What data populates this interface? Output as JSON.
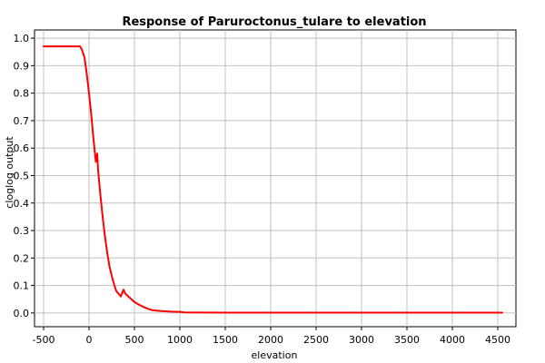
{
  "chart_data": {
    "type": "line",
    "title": "Response of Paruroctonus_tulare to elevation",
    "xlabel": "elevation",
    "ylabel": "cloglog output",
    "xlim": [
      -600,
      4700
    ],
    "ylim": [
      -0.05,
      1.03
    ],
    "xticks": [
      -500,
      0,
      500,
      1000,
      1500,
      2000,
      2500,
      3000,
      3500,
      4000,
      4500
    ],
    "yticks": [
      0.0,
      0.1,
      0.2,
      0.3,
      0.4,
      0.5,
      0.6,
      0.7,
      0.8,
      0.9,
      1.0
    ],
    "ytick_labels": [
      "0.0",
      "0.1",
      "0.2",
      "0.3",
      "0.4",
      "0.5",
      "0.6",
      "0.7",
      "0.8",
      "0.9",
      "1.0"
    ],
    "grid": true,
    "series": [
      {
        "color": "#ff0000",
        "x": [
          -500,
          -100,
          -80,
          -50,
          -25,
          0,
          25,
          50,
          75,
          90,
          100,
          125,
          150,
          175,
          200,
          225,
          250,
          275,
          300,
          350,
          380,
          400,
          450,
          500,
          550,
          600,
          650,
          700,
          800,
          900,
          1000,
          1050,
          1500,
          2000,
          3000,
          4000,
          4550
        ],
        "y": [
          0.97,
          0.97,
          0.96,
          0.93,
          0.87,
          0.8,
          0.72,
          0.63,
          0.55,
          0.58,
          0.52,
          0.43,
          0.35,
          0.28,
          0.22,
          0.17,
          0.135,
          0.105,
          0.08,
          0.06,
          0.085,
          0.07,
          0.055,
          0.04,
          0.03,
          0.022,
          0.015,
          0.01,
          0.007,
          0.005,
          0.004,
          0.002,
          0.001,
          0.001,
          0.001,
          0.001,
          0.001
        ]
      }
    ]
  }
}
